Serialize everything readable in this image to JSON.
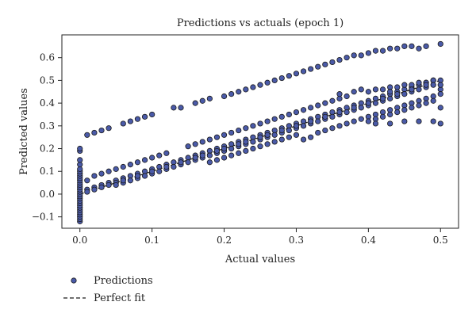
{
  "chart_data": {
    "type": "scatter",
    "title": "Predictions vs actuals (epoch 1)",
    "xlabel": "Actual values",
    "ylabel": "Predicted values",
    "xlim": [
      -0.025,
      0.525
    ],
    "ylim": [
      -0.15,
      0.7
    ],
    "x_ticks": [
      0.0,
      0.1,
      0.2,
      0.3,
      0.4,
      0.5
    ],
    "x_tick_labels": [
      "0.0",
      "0.1",
      "0.2",
      "0.3",
      "0.4",
      "0.5"
    ],
    "y_ticks": [
      -0.1,
      0.0,
      0.1,
      0.2,
      0.3,
      0.4,
      0.5,
      0.6
    ],
    "y_tick_labels": [
      "−0.1",
      "0.0",
      "0.1",
      "0.2",
      "0.3",
      "0.4",
      "0.5",
      "0.6"
    ],
    "grid": false,
    "legend": "below-left",
    "colors": {
      "marker_fill": "#4a5aa8",
      "marker_edge": "#1a1a1a",
      "line": "#1a1a1a"
    },
    "series": [
      {
        "name": "Predictions",
        "style": "markers",
        "points": [
          [
            0.0,
            -0.12
          ],
          [
            0.0,
            -0.11
          ],
          [
            0.0,
            -0.1
          ],
          [
            0.0,
            -0.09
          ],
          [
            0.0,
            -0.08
          ],
          [
            0.0,
            -0.07
          ],
          [
            0.0,
            -0.06
          ],
          [
            0.0,
            -0.05
          ],
          [
            0.0,
            -0.04
          ],
          [
            0.0,
            -0.03
          ],
          [
            0.0,
            -0.02
          ],
          [
            0.0,
            -0.01
          ],
          [
            0.0,
            0.0
          ],
          [
            0.0,
            0.01
          ],
          [
            0.0,
            0.02
          ],
          [
            0.0,
            0.03
          ],
          [
            0.0,
            0.04
          ],
          [
            0.0,
            0.05
          ],
          [
            0.0,
            0.06
          ],
          [
            0.0,
            0.07
          ],
          [
            0.0,
            0.08
          ],
          [
            0.0,
            0.09
          ],
          [
            0.0,
            0.1
          ],
          [
            0.0,
            0.11
          ],
          [
            0.0,
            0.13
          ],
          [
            0.0,
            0.15
          ],
          [
            0.0,
            0.19
          ],
          [
            0.0,
            0.2
          ],
          [
            0.01,
            0.26
          ],
          [
            0.02,
            0.27
          ],
          [
            0.03,
            0.28
          ],
          [
            0.04,
            0.29
          ],
          [
            0.06,
            0.31
          ],
          [
            0.07,
            0.32
          ],
          [
            0.08,
            0.33
          ],
          [
            0.09,
            0.34
          ],
          [
            0.1,
            0.35
          ],
          [
            0.13,
            0.38
          ],
          [
            0.14,
            0.38
          ],
          [
            0.16,
            0.4
          ],
          [
            0.17,
            0.41
          ],
          [
            0.18,
            0.42
          ],
          [
            0.2,
            0.43
          ],
          [
            0.21,
            0.44
          ],
          [
            0.22,
            0.45
          ],
          [
            0.23,
            0.46
          ],
          [
            0.24,
            0.47
          ],
          [
            0.25,
            0.48
          ],
          [
            0.26,
            0.49
          ],
          [
            0.27,
            0.5
          ],
          [
            0.28,
            0.51
          ],
          [
            0.29,
            0.52
          ],
          [
            0.3,
            0.53
          ],
          [
            0.31,
            0.54
          ],
          [
            0.32,
            0.55
          ],
          [
            0.33,
            0.56
          ],
          [
            0.34,
            0.57
          ],
          [
            0.35,
            0.58
          ],
          [
            0.36,
            0.59
          ],
          [
            0.37,
            0.6
          ],
          [
            0.38,
            0.61
          ],
          [
            0.39,
            0.61
          ],
          [
            0.4,
            0.62
          ],
          [
            0.41,
            0.63
          ],
          [
            0.42,
            0.63
          ],
          [
            0.43,
            0.64
          ],
          [
            0.44,
            0.64
          ],
          [
            0.45,
            0.65
          ],
          [
            0.46,
            0.65
          ],
          [
            0.47,
            0.64
          ],
          [
            0.48,
            0.65
          ],
          [
            0.5,
            0.66
          ],
          [
            0.01,
            0.02
          ],
          [
            0.02,
            0.03
          ],
          [
            0.03,
            0.04
          ],
          [
            0.04,
            0.05
          ],
          [
            0.05,
            0.06
          ],
          [
            0.06,
            0.07
          ],
          [
            0.07,
            0.08
          ],
          [
            0.08,
            0.09
          ],
          [
            0.09,
            0.1
          ],
          [
            0.1,
            0.11
          ],
          [
            0.11,
            0.12
          ],
          [
            0.12,
            0.13
          ],
          [
            0.13,
            0.14
          ],
          [
            0.14,
            0.15
          ],
          [
            0.15,
            0.16
          ],
          [
            0.16,
            0.17
          ],
          [
            0.17,
            0.18
          ],
          [
            0.18,
            0.19
          ],
          [
            0.19,
            0.2
          ],
          [
            0.2,
            0.21
          ],
          [
            0.21,
            0.22
          ],
          [
            0.22,
            0.23
          ],
          [
            0.23,
            0.24
          ],
          [
            0.24,
            0.25
          ],
          [
            0.25,
            0.26
          ],
          [
            0.26,
            0.27
          ],
          [
            0.27,
            0.28
          ],
          [
            0.28,
            0.29
          ],
          [
            0.29,
            0.3
          ],
          [
            0.3,
            0.31
          ],
          [
            0.31,
            0.32
          ],
          [
            0.32,
            0.33
          ],
          [
            0.33,
            0.34
          ],
          [
            0.34,
            0.35
          ],
          [
            0.35,
            0.36
          ],
          [
            0.36,
            0.37
          ],
          [
            0.37,
            0.38
          ],
          [
            0.38,
            0.39
          ],
          [
            0.39,
            0.4
          ],
          [
            0.4,
            0.41
          ],
          [
            0.41,
            0.42
          ],
          [
            0.42,
            0.43
          ],
          [
            0.43,
            0.44
          ],
          [
            0.44,
            0.45
          ],
          [
            0.45,
            0.46
          ],
          [
            0.46,
            0.47
          ],
          [
            0.47,
            0.48
          ],
          [
            0.48,
            0.49
          ],
          [
            0.49,
            0.5
          ],
          [
            0.5,
            0.5
          ],
          [
            0.01,
            0.06
          ],
          [
            0.02,
            0.08
          ],
          [
            0.03,
            0.09
          ],
          [
            0.04,
            0.1
          ],
          [
            0.05,
            0.11
          ],
          [
            0.06,
            0.12
          ],
          [
            0.07,
            0.13
          ],
          [
            0.08,
            0.14
          ],
          [
            0.09,
            0.15
          ],
          [
            0.1,
            0.16
          ],
          [
            0.11,
            0.17
          ],
          [
            0.12,
            0.18
          ],
          [
            0.15,
            0.21
          ],
          [
            0.16,
            0.22
          ],
          [
            0.17,
            0.23
          ],
          [
            0.18,
            0.24
          ],
          [
            0.19,
            0.25
          ],
          [
            0.2,
            0.26
          ],
          [
            0.21,
            0.27
          ],
          [
            0.22,
            0.28
          ],
          [
            0.23,
            0.29
          ],
          [
            0.24,
            0.3
          ],
          [
            0.25,
            0.31
          ],
          [
            0.26,
            0.32
          ],
          [
            0.27,
            0.33
          ],
          [
            0.28,
            0.34
          ],
          [
            0.29,
            0.35
          ],
          [
            0.3,
            0.36
          ],
          [
            0.31,
            0.37
          ],
          [
            0.32,
            0.38
          ],
          [
            0.33,
            0.39
          ],
          [
            0.34,
            0.4
          ],
          [
            0.35,
            0.41
          ],
          [
            0.36,
            0.42
          ],
          [
            0.37,
            0.43
          ],
          [
            0.4,
            0.45
          ],
          [
            0.41,
            0.46
          ],
          [
            0.42,
            0.46
          ],
          [
            0.43,
            0.47
          ],
          [
            0.44,
            0.47
          ],
          [
            0.45,
            0.48
          ],
          [
            0.46,
            0.48
          ],
          [
            0.47,
            0.49
          ],
          [
            0.48,
            0.49
          ],
          [
            0.49,
            0.5
          ],
          [
            0.01,
            0.01
          ],
          [
            0.02,
            0.02
          ],
          [
            0.03,
            0.03
          ],
          [
            0.04,
            0.04
          ],
          [
            0.05,
            0.05
          ],
          [
            0.06,
            0.05
          ],
          [
            0.07,
            0.06
          ],
          [
            0.08,
            0.07
          ],
          [
            0.09,
            0.08
          ],
          [
            0.1,
            0.09
          ],
          [
            0.11,
            0.1
          ],
          [
            0.12,
            0.11
          ],
          [
            0.13,
            0.12
          ],
          [
            0.14,
            0.13
          ],
          [
            0.15,
            0.14
          ],
          [
            0.16,
            0.15
          ],
          [
            0.17,
            0.16
          ],
          [
            0.18,
            0.17
          ],
          [
            0.19,
            0.18
          ],
          [
            0.2,
            0.19
          ],
          [
            0.21,
            0.2
          ],
          [
            0.22,
            0.21
          ],
          [
            0.23,
            0.22
          ],
          [
            0.24,
            0.23
          ],
          [
            0.25,
            0.24
          ],
          [
            0.26,
            0.25
          ],
          [
            0.27,
            0.26
          ],
          [
            0.28,
            0.27
          ],
          [
            0.29,
            0.28
          ],
          [
            0.3,
            0.29
          ],
          [
            0.31,
            0.3
          ],
          [
            0.32,
            0.31
          ],
          [
            0.33,
            0.32
          ],
          [
            0.34,
            0.33
          ],
          [
            0.35,
            0.34
          ],
          [
            0.36,
            0.35
          ],
          [
            0.37,
            0.36
          ],
          [
            0.38,
            0.37
          ],
          [
            0.39,
            0.38
          ],
          [
            0.4,
            0.39
          ],
          [
            0.41,
            0.4
          ],
          [
            0.42,
            0.41
          ],
          [
            0.43,
            0.42
          ],
          [
            0.44,
            0.43
          ],
          [
            0.45,
            0.44
          ],
          [
            0.46,
            0.45
          ],
          [
            0.47,
            0.46
          ],
          [
            0.48,
            0.47
          ],
          [
            0.49,
            0.48
          ],
          [
            0.5,
            0.46
          ],
          [
            0.05,
            0.04
          ],
          [
            0.06,
            0.06
          ],
          [
            0.08,
            0.08
          ],
          [
            0.1,
            0.1
          ],
          [
            0.12,
            0.12
          ],
          [
            0.14,
            0.14
          ],
          [
            0.16,
            0.16
          ],
          [
            0.17,
            0.17
          ],
          [
            0.19,
            0.19
          ],
          [
            0.2,
            0.2
          ],
          [
            0.22,
            0.22
          ],
          [
            0.23,
            0.23
          ],
          [
            0.25,
            0.25
          ],
          [
            0.26,
            0.26
          ],
          [
            0.28,
            0.28
          ],
          [
            0.3,
            0.3
          ],
          [
            0.32,
            0.32
          ],
          [
            0.34,
            0.34
          ],
          [
            0.36,
            0.36
          ],
          [
            0.38,
            0.38
          ],
          [
            0.4,
            0.4
          ],
          [
            0.42,
            0.42
          ],
          [
            0.44,
            0.44
          ],
          [
            0.46,
            0.46
          ],
          [
            0.48,
            0.48
          ],
          [
            0.5,
            0.48
          ],
          [
            0.18,
            0.14
          ],
          [
            0.19,
            0.15
          ],
          [
            0.2,
            0.16
          ],
          [
            0.21,
            0.17
          ],
          [
            0.22,
            0.18
          ],
          [
            0.23,
            0.19
          ],
          [
            0.24,
            0.2
          ],
          [
            0.25,
            0.21
          ],
          [
            0.26,
            0.22
          ],
          [
            0.27,
            0.23
          ],
          [
            0.28,
            0.24
          ],
          [
            0.29,
            0.25
          ],
          [
            0.3,
            0.26
          ],
          [
            0.31,
            0.24
          ],
          [
            0.32,
            0.25
          ],
          [
            0.33,
            0.27
          ],
          [
            0.34,
            0.28
          ],
          [
            0.35,
            0.29
          ],
          [
            0.36,
            0.3
          ],
          [
            0.37,
            0.31
          ],
          [
            0.38,
            0.32
          ],
          [
            0.39,
            0.33
          ],
          [
            0.4,
            0.34
          ],
          [
            0.41,
            0.35
          ],
          [
            0.42,
            0.36
          ],
          [
            0.43,
            0.37
          ],
          [
            0.44,
            0.38
          ],
          [
            0.45,
            0.39
          ],
          [
            0.46,
            0.4
          ],
          [
            0.47,
            0.41
          ],
          [
            0.48,
            0.42
          ],
          [
            0.49,
            0.43
          ],
          [
            0.5,
            0.44
          ],
          [
            0.4,
            0.32
          ],
          [
            0.41,
            0.33
          ],
          [
            0.42,
            0.34
          ],
          [
            0.43,
            0.35
          ],
          [
            0.44,
            0.36
          ],
          [
            0.45,
            0.37
          ],
          [
            0.46,
            0.38
          ],
          [
            0.47,
            0.39
          ],
          [
            0.48,
            0.4
          ],
          [
            0.49,
            0.41
          ],
          [
            0.5,
            0.38
          ],
          [
            0.45,
            0.32
          ],
          [
            0.47,
            0.32
          ],
          [
            0.49,
            0.32
          ],
          [
            0.5,
            0.31
          ],
          [
            0.43,
            0.31
          ],
          [
            0.41,
            0.31
          ],
          [
            0.43,
            0.45
          ],
          [
            0.38,
            0.45
          ],
          [
            0.39,
            0.46
          ],
          [
            0.36,
            0.44
          ]
        ]
      },
      {
        "name": "Perfect fit",
        "style": "dashed-line",
        "points": [
          [
            0.0,
            0.0
          ],
          [
            0.5,
            0.5
          ]
        ]
      }
    ]
  }
}
